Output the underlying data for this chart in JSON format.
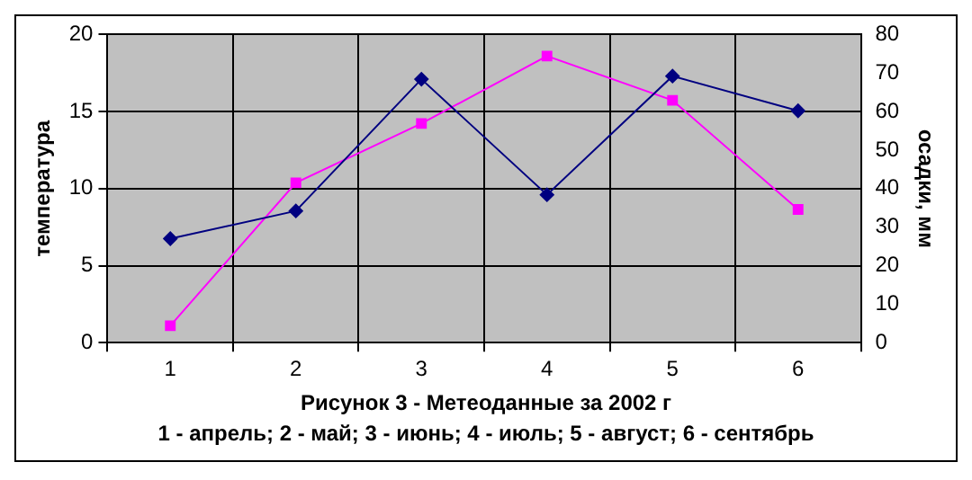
{
  "chart_data": {
    "type": "line",
    "title": "Рисунок 3 - Метеоданные за 2002 г",
    "subtitle": "1 - апрель; 2 - май; 3 - июнь; 4 - июль; 5 - август; 6 - сентябрь",
    "ylabel": "температура",
    "y2label": "осадки, мм",
    "categories": [
      "1",
      "2",
      "3",
      "4",
      "5",
      "6"
    ],
    "series": [
      {
        "color": "#000080",
        "marker": "diamond",
        "values": [
          6.75,
          8.55,
          17.1,
          9.6,
          17.3,
          15.05
        ]
      },
      {
        "color": "#ff00ff",
        "marker": "square",
        "axis": "y2",
        "values": [
          4.4,
          41.5,
          56.9,
          74.4,
          62.9,
          34.6
        ]
      }
    ],
    "ylim": [
      0,
      20
    ],
    "yticks": [
      0,
      5,
      10,
      15,
      20
    ],
    "y2lim": [
      0,
      80
    ],
    "y2ticks": [
      0,
      10,
      20,
      30,
      40,
      50,
      60,
      70,
      80
    ],
    "grid": true,
    "legend": false
  }
}
